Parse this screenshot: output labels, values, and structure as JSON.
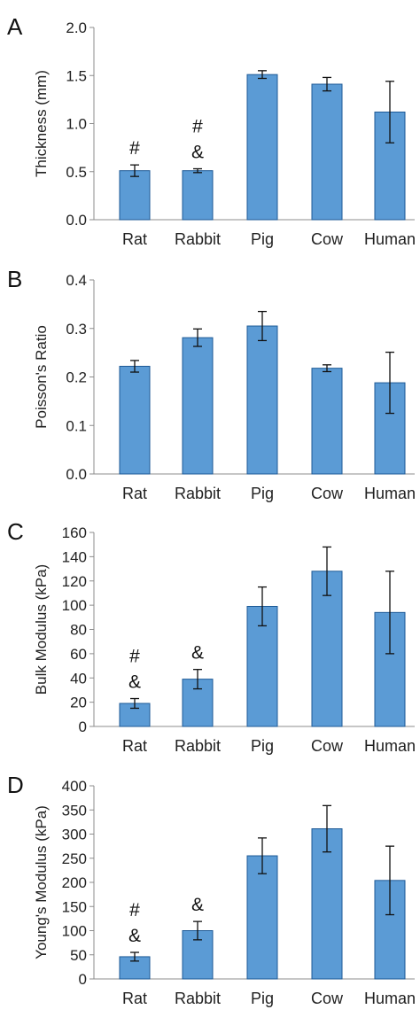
{
  "colors": {
    "bar": "#5b9bd5",
    "bar_edge": "#1e5a96",
    "axis": "#8c8c8c",
    "text": "#222222"
  },
  "chart_data": [
    {
      "type": "bar",
      "panel_label": "A",
      "ylabel": "Thickness (mm)",
      "categories": [
        "Rat",
        "Rabbit",
        "Pig",
        "Cow",
        "Human"
      ],
      "values": [
        0.51,
        0.51,
        1.51,
        1.41,
        1.12
      ],
      "errors": [
        0.06,
        0.02,
        0.04,
        0.07,
        0.32
      ],
      "ylim": [
        0,
        2.0
      ],
      "yticks": [
        "0.0",
        "0.5",
        "1.0",
        "1.5",
        "2.0"
      ],
      "annotations": [
        [
          "#"
        ],
        [
          "#",
          "&"
        ],
        [],
        [],
        []
      ]
    },
    {
      "type": "bar",
      "panel_label": "B",
      "ylabel": "Poisson's Ratio",
      "categories": [
        "Rat",
        "Rabbit",
        "Pig",
        "Cow",
        "Human"
      ],
      "values": [
        0.222,
        0.281,
        0.305,
        0.218,
        0.188
      ],
      "errors": [
        0.012,
        0.018,
        0.03,
        0.007,
        0.063
      ],
      "ylim": [
        0,
        0.4
      ],
      "yticks": [
        "0.0",
        "0.1",
        "0.2",
        "0.3",
        "0.4"
      ],
      "annotations": [
        [],
        [],
        [],
        [],
        []
      ]
    },
    {
      "type": "bar",
      "panel_label": "C",
      "ylabel": "Bulk Modulus (kPa)",
      "categories": [
        "Rat",
        "Rabbit",
        "Pig",
        "Cow",
        "Human"
      ],
      "values": [
        19,
        39,
        99,
        128,
        94
      ],
      "errors": [
        4,
        8,
        16,
        20,
        34
      ],
      "ylim": [
        0,
        160
      ],
      "yticks": [
        "0",
        "20",
        "40",
        "60",
        "80",
        "100",
        "120",
        "140",
        "160"
      ],
      "annotations": [
        [
          "#",
          "&"
        ],
        [
          "&"
        ],
        [],
        [],
        []
      ]
    },
    {
      "type": "bar",
      "panel_label": "D",
      "ylabel": "Young's Modulus (kPa)",
      "categories": [
        "Rat",
        "Rabbit",
        "Pig",
        "Cow",
        "Human"
      ],
      "values": [
        46,
        100,
        255,
        311,
        204
      ],
      "errors": [
        9,
        19,
        37,
        48,
        71
      ],
      "ylim": [
        0,
        400
      ],
      "yticks": [
        "0",
        "50",
        "100",
        "150",
        "200",
        "250",
        "300",
        "350",
        "400"
      ],
      "annotations": [
        [
          "#",
          "&"
        ],
        [
          "&"
        ],
        [],
        [],
        []
      ]
    }
  ]
}
